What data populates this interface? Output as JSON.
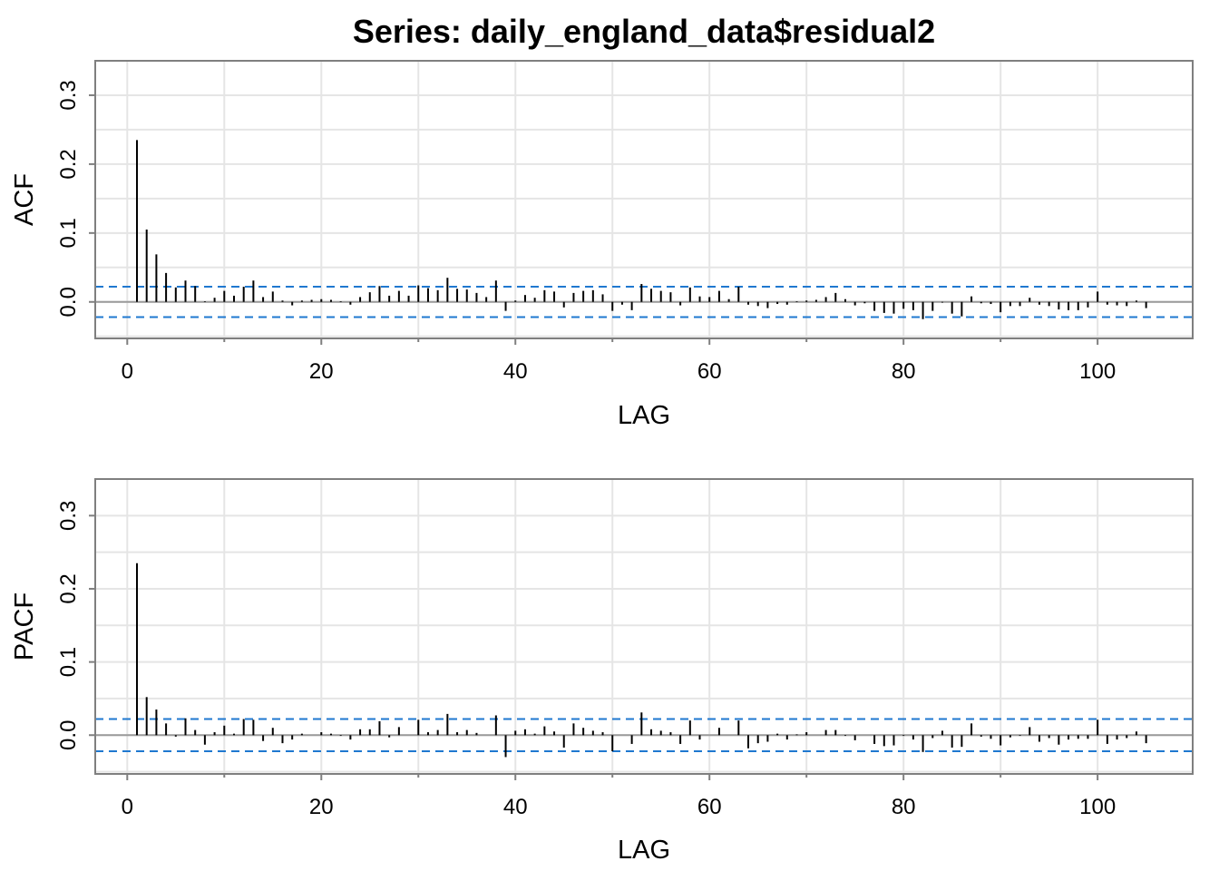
{
  "title": "Series:  daily_england_data$residual2",
  "colors": {
    "grid": "#e5e5e5",
    "zero_line": "#9a9a9a",
    "ci_line": "#1f78d0",
    "bars": "#000000",
    "frame": "#7f7f7f"
  },
  "chart_data": [
    {
      "type": "bar",
      "name": "acf",
      "xlabel": "LAG",
      "ylabel": "ACF",
      "xlim": [
        -3.3,
        109.8
      ],
      "ylim": [
        -0.053,
        0.35
      ],
      "xticks": [
        0,
        20,
        40,
        60,
        80,
        100
      ],
      "yticks": [
        0.0,
        0.1,
        0.2,
        0.3
      ],
      "ytick_labels": [
        "0.0",
        "0.1",
        "0.2",
        "0.3"
      ],
      "confidence_band": [
        -0.022,
        0.022
      ],
      "grid": true,
      "x": [
        1,
        2,
        3,
        4,
        5,
        6,
        7,
        8,
        9,
        10,
        11,
        12,
        13,
        14,
        15,
        16,
        17,
        18,
        19,
        20,
        21,
        22,
        23,
        24,
        25,
        26,
        27,
        28,
        29,
        30,
        31,
        32,
        33,
        34,
        35,
        36,
        37,
        38,
        39,
        40,
        41,
        42,
        43,
        44,
        45,
        46,
        47,
        48,
        49,
        50,
        51,
        52,
        53,
        54,
        55,
        56,
        57,
        58,
        59,
        60,
        61,
        62,
        63,
        64,
        65,
        66,
        67,
        68,
        69,
        70,
        71,
        72,
        73,
        74,
        75,
        76,
        77,
        78,
        79,
        80,
        81,
        82,
        83,
        84,
        85,
        86,
        87,
        88,
        89,
        90,
        91,
        92,
        93,
        94,
        95,
        96,
        97,
        98,
        99,
        100,
        101,
        102,
        103,
        104,
        105
      ],
      "values": [
        0.235,
        0.105,
        0.069,
        0.042,
        0.021,
        0.031,
        0.023,
        0.001,
        0.006,
        0.016,
        0.009,
        0.022,
        0.031,
        0.007,
        0.015,
        0.002,
        -0.005,
        0.002,
        0.003,
        0.004,
        0.003,
        0.001,
        -0.004,
        0.007,
        0.014,
        0.023,
        0.009,
        0.016,
        0.009,
        0.024,
        0.02,
        0.017,
        0.035,
        0.019,
        0.018,
        0.013,
        0.007,
        0.031,
        -0.013,
        0.002,
        0.01,
        0.006,
        0.017,
        0.015,
        -0.008,
        0.013,
        0.016,
        0.017,
        0.011,
        -0.013,
        -0.004,
        -0.012,
        0.026,
        0.019,
        0.016,
        0.014,
        -0.005,
        0.021,
        0.008,
        0.007,
        0.016,
        0.004,
        0.022,
        -0.004,
        -0.006,
        -0.009,
        -0.003,
        -0.004,
        0.001,
        0.002,
        0.003,
        0.007,
        0.013,
        0.004,
        -0.005,
        -0.002,
        -0.013,
        -0.016,
        -0.017,
        -0.01,
        -0.012,
        -0.025,
        -0.013,
        -0.001,
        -0.017,
        -0.021,
        0.008,
        -0.002,
        -0.003,
        -0.015,
        -0.006,
        -0.006,
        0.006,
        -0.004,
        -0.006,
        -0.011,
        -0.012,
        -0.012,
        -0.008,
        0.015,
        -0.004,
        -0.005,
        -0.006,
        0.002,
        -0.009
      ]
    },
    {
      "type": "bar",
      "name": "pacf",
      "xlabel": "LAG",
      "ylabel": "PACF",
      "xlim": [
        -3.3,
        109.8
      ],
      "ylim": [
        -0.053,
        0.35
      ],
      "xticks": [
        0,
        20,
        40,
        60,
        80,
        100
      ],
      "yticks": [
        0.0,
        0.1,
        0.2,
        0.3
      ],
      "ytick_labels": [
        "0.0",
        "0.1",
        "0.2",
        "0.3"
      ],
      "confidence_band": [
        -0.022,
        0.022
      ],
      "grid": true,
      "x": [
        1,
        2,
        3,
        4,
        5,
        6,
        7,
        8,
        9,
        10,
        11,
        12,
        13,
        14,
        15,
        16,
        17,
        18,
        19,
        20,
        21,
        22,
        23,
        24,
        25,
        26,
        27,
        28,
        29,
        30,
        31,
        32,
        33,
        34,
        35,
        36,
        37,
        38,
        39,
        40,
        41,
        42,
        43,
        44,
        45,
        46,
        47,
        48,
        49,
        50,
        51,
        52,
        53,
        54,
        55,
        56,
        57,
        58,
        59,
        60,
        61,
        62,
        63,
        64,
        65,
        66,
        67,
        68,
        69,
        70,
        71,
        72,
        73,
        74,
        75,
        76,
        77,
        78,
        79,
        80,
        81,
        82,
        83,
        84,
        85,
        86,
        87,
        88,
        89,
        90,
        91,
        92,
        93,
        94,
        95,
        96,
        97,
        98,
        99,
        100,
        101,
        102,
        103,
        104,
        105
      ],
      "values": [
        0.235,
        0.052,
        0.035,
        0.016,
        -0.002,
        0.023,
        0.007,
        -0.013,
        0.004,
        0.013,
        0.002,
        0.022,
        0.021,
        -0.008,
        0.01,
        -0.011,
        -0.006,
        0.002,
        0.0,
        0.004,
        0.002,
        -0.001,
        -0.006,
        0.008,
        0.008,
        0.019,
        -0.003,
        0.011,
        0.0,
        0.021,
        0.004,
        0.007,
        0.029,
        0.004,
        0.007,
        0.003,
        0.0,
        0.027,
        -0.03,
        0.006,
        0.008,
        0.002,
        0.012,
        0.005,
        -0.017,
        0.016,
        0.01,
        0.006,
        0.004,
        -0.022,
        0.0,
        -0.012,
        0.031,
        0.008,
        0.006,
        0.004,
        -0.012,
        0.02,
        -0.006,
        0.0,
        0.01,
        0.0,
        0.02,
        -0.018,
        -0.011,
        -0.009,
        0.002,
        -0.006,
        0.001,
        0.004,
        0.0,
        0.007,
        0.007,
        -0.001,
        -0.007,
        0.0,
        -0.012,
        -0.015,
        -0.014,
        -0.001,
        -0.006,
        -0.023,
        -0.004,
        0.006,
        -0.017,
        -0.016,
        0.016,
        -0.002,
        -0.005,
        -0.014,
        -0.003,
        -0.001,
        0.011,
        -0.009,
        -0.004,
        -0.013,
        -0.006,
        -0.005,
        -0.005,
        0.021,
        -0.012,
        -0.006,
        -0.004,
        0.005,
        -0.011
      ]
    }
  ]
}
